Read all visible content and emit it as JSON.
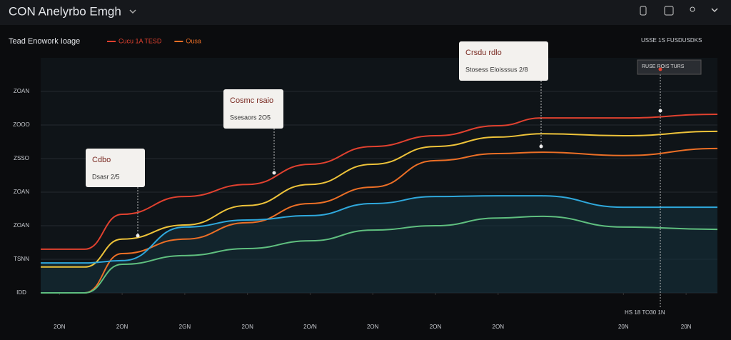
{
  "header": {
    "title": "CON Anelyrbo Emgh"
  },
  "chart_data": {
    "type": "line",
    "title": "Tead Enowork Ioage",
    "x": [
      -0.3,
      0.4,
      1,
      2,
      3,
      4,
      5,
      6,
      7,
      7.7,
      9,
      10.5
    ],
    "xlim": [
      -0.3,
      10.5
    ],
    "xticks": [
      {
        "value": 0,
        "label": "2ON"
      },
      {
        "value": 1,
        "label": "2ON"
      },
      {
        "value": 2,
        "label": "2GN"
      },
      {
        "value": 3,
        "label": "2ON"
      },
      {
        "value": 4,
        "label": "2O/N"
      },
      {
        "value": 5,
        "label": "2ON"
      },
      {
        "value": 6,
        "label": "2ON"
      },
      {
        "value": 7,
        "label": "2ON"
      },
      {
        "value": 9,
        "label": "20N"
      },
      {
        "value": 10,
        "label": "20N"
      }
    ],
    "ylim": [
      0,
      700
    ],
    "yticks": [
      {
        "value": 0,
        "label": "IDD"
      },
      {
        "value": 100,
        "label": "TSNN"
      },
      {
        "value": 200,
        "label": "ZOAN"
      },
      {
        "value": 300,
        "label": "ZOAN"
      },
      {
        "value": 400,
        "label": "ZSSO"
      },
      {
        "value": 500,
        "label": "ZOOO"
      },
      {
        "value": 600,
        "label": "ZOAN"
      }
    ],
    "grid": true,
    "series": [
      {
        "name": "Cucu 1A TESD",
        "color": "#e0412f",
        "values": [
          130,
          130,
          234,
          287,
          323,
          383,
          436,
          468,
          498,
          521,
          521,
          532
        ]
      },
      {
        "color": "#eec33a",
        "values": [
          77,
          77,
          160,
          202,
          260,
          323,
          383,
          436,
          464,
          474,
          468,
          481
        ]
      },
      {
        "name": "Ousa",
        "color": "#ec6f26",
        "values": [
          0,
          0,
          117,
          160,
          209,
          266,
          315,
          394,
          415,
          419,
          409,
          430
        ]
      },
      {
        "color": "#2fa8dc",
        "values": [
          89,
          89,
          96,
          196,
          217,
          230,
          266,
          287,
          289,
          289,
          255,
          255
        ]
      },
      {
        "color": "#5fbf7f",
        "values": [
          0,
          0,
          85,
          111,
          132,
          155,
          187,
          200,
          223,
          228,
          196,
          189
        ]
      }
    ],
    "annotations": [
      {
        "title": "Cdbo",
        "text": "Dsasr  2/5"
      },
      {
        "title": "Cosmc rsaio",
        "text": "Ssesaors  2O5"
      },
      {
        "title": "Crsdu rdlo",
        "text": "Stosess  Eloisssus  2/8"
      }
    ],
    "tag": "RUSE ROIS      TURS",
    "top_right": "USSE 1S   FUSDUSDKS",
    "bottom_right": "HS 18 TO30 1N"
  }
}
